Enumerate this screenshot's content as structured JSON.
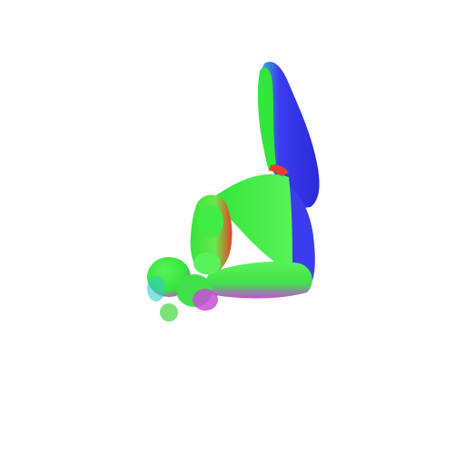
{
  "scene": {
    "background_color": "#ffffff",
    "subject": "normal-map-render-of-posed-figure",
    "palette": {
      "blue": "#3b3cf0",
      "blue_dark": "#2a2ad6",
      "green": "#33e63a",
      "green_light": "#5af25a",
      "red": "#e6402a",
      "magenta": "#c84cd8",
      "cyan": "#35c9c8"
    }
  }
}
